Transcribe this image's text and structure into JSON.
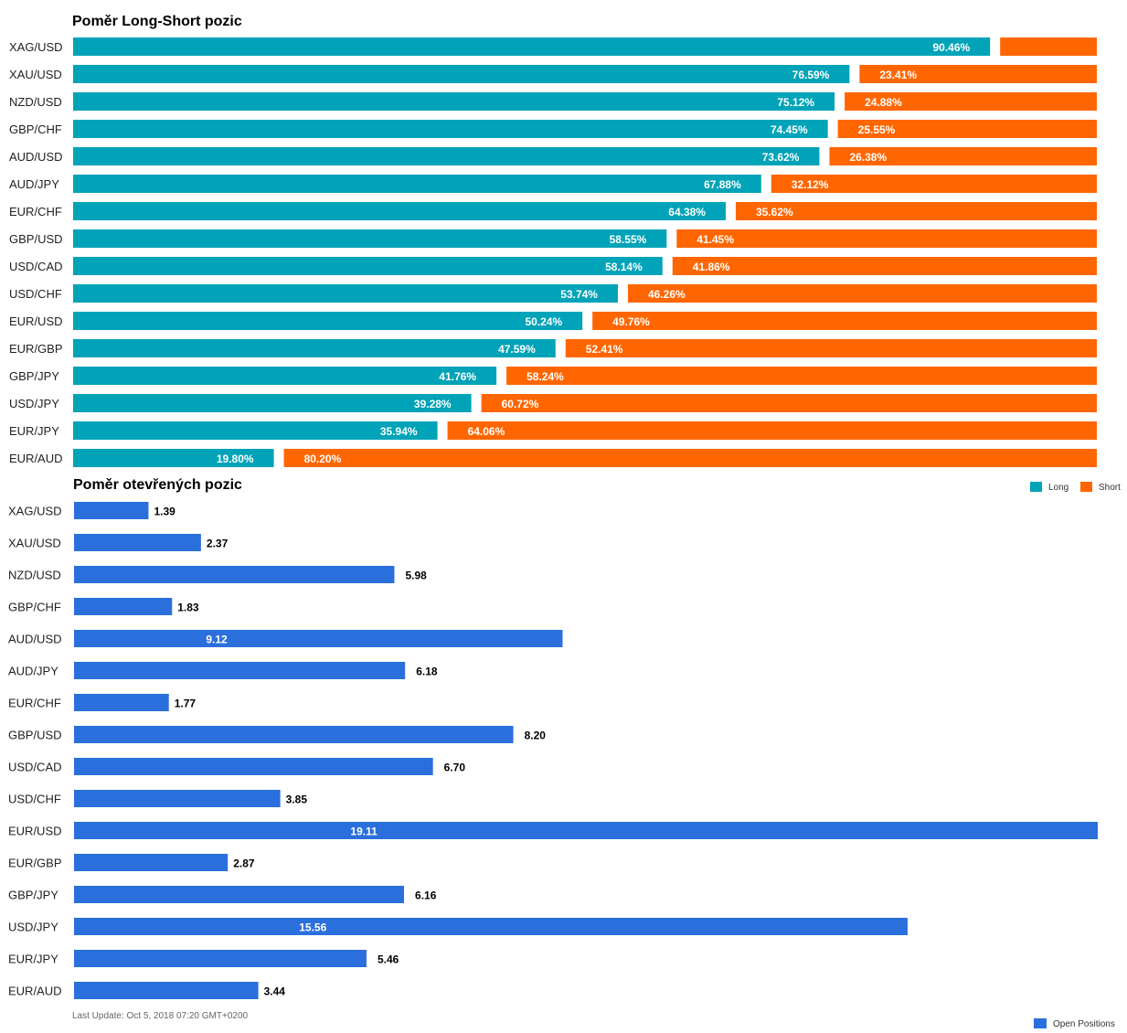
{
  "chart_data": [
    {
      "type": "bar",
      "orientation": "horizontal",
      "stacked": true,
      "title": "Poměr Long-Short pozic",
      "categories": [
        "XAG/USD",
        "XAU/USD",
        "NZD/USD",
        "GBP/CHF",
        "AUD/USD",
        "AUD/JPY",
        "EUR/CHF",
        "GBP/USD",
        "USD/CAD",
        "USD/CHF",
        "EUR/USD",
        "EUR/GBP",
        "GBP/JPY",
        "USD/JPY",
        "EUR/JPY",
        "EUR/AUD"
      ],
      "series": [
        {
          "name": "Long",
          "color": "#00a3b8",
          "values": [
            90.46,
            76.59,
            75.12,
            74.45,
            73.62,
            67.88,
            64.38,
            58.55,
            58.14,
            53.74,
            50.24,
            47.59,
            41.76,
            39.28,
            35.94,
            19.8
          ]
        },
        {
          "name": "Short",
          "color": "#ff6600",
          "values": [
            9.54,
            23.41,
            24.88,
            25.55,
            26.38,
            32.12,
            35.62,
            41.45,
            41.86,
            46.26,
            49.76,
            52.41,
            58.24,
            60.72,
            64.06,
            80.2
          ]
        }
      ],
      "labels": {
        "Long": [
          "90.46%",
          "76.59%",
          "75.12%",
          "74.45%",
          "73.62%",
          "67.88%",
          "64.38%",
          "58.55%",
          "58.14%",
          "53.74%",
          "50.24%",
          "47.59%",
          "41.76%",
          "39.28%",
          "35.94%",
          "19.80%"
        ],
        "Short": [
          "",
          "23.41%",
          "24.88%",
          "25.55%",
          "26.38%",
          "32.12%",
          "35.62%",
          "41.45%",
          "41.86%",
          "46.26%",
          "49.76%",
          "52.41%",
          "58.24%",
          "60.72%",
          "64.06%",
          "80.20%"
        ]
      },
      "legend": "bottom-right",
      "grid": false
    },
    {
      "type": "bar",
      "orientation": "horizontal",
      "title": "Poměr otevřených pozic",
      "categories": [
        "XAG/USD",
        "XAU/USD",
        "NZD/USD",
        "GBP/CHF",
        "AUD/USD",
        "AUD/JPY",
        "EUR/CHF",
        "GBP/USD",
        "USD/CAD",
        "USD/CHF",
        "EUR/USD",
        "EUR/GBP",
        "GBP/JPY",
        "USD/JPY",
        "EUR/JPY",
        "EUR/AUD"
      ],
      "series": [
        {
          "name": "Open Positions",
          "color": "#2b6fdc",
          "values": [
            1.39,
            2.37,
            5.98,
            1.83,
            9.12,
            6.18,
            1.77,
            8.2,
            6.7,
            3.85,
            19.11,
            2.87,
            6.16,
            15.56,
            5.46,
            3.44
          ]
        }
      ],
      "labels": [
        "1.39",
        "2.37",
        "5.98",
        "1.83",
        "9.12",
        "6.18",
        "1.77",
        "8.20",
        "6.70",
        "3.85",
        "19.11",
        "2.87",
        "6.16",
        "15.56",
        "5.46",
        "3.44"
      ],
      "xlim": [
        0,
        19.11
      ],
      "legend": "bottom-right",
      "grid": false
    }
  ],
  "footer": {
    "last_update": "Last Update: Oct 5, 2018 07:20 GMT+0200"
  }
}
